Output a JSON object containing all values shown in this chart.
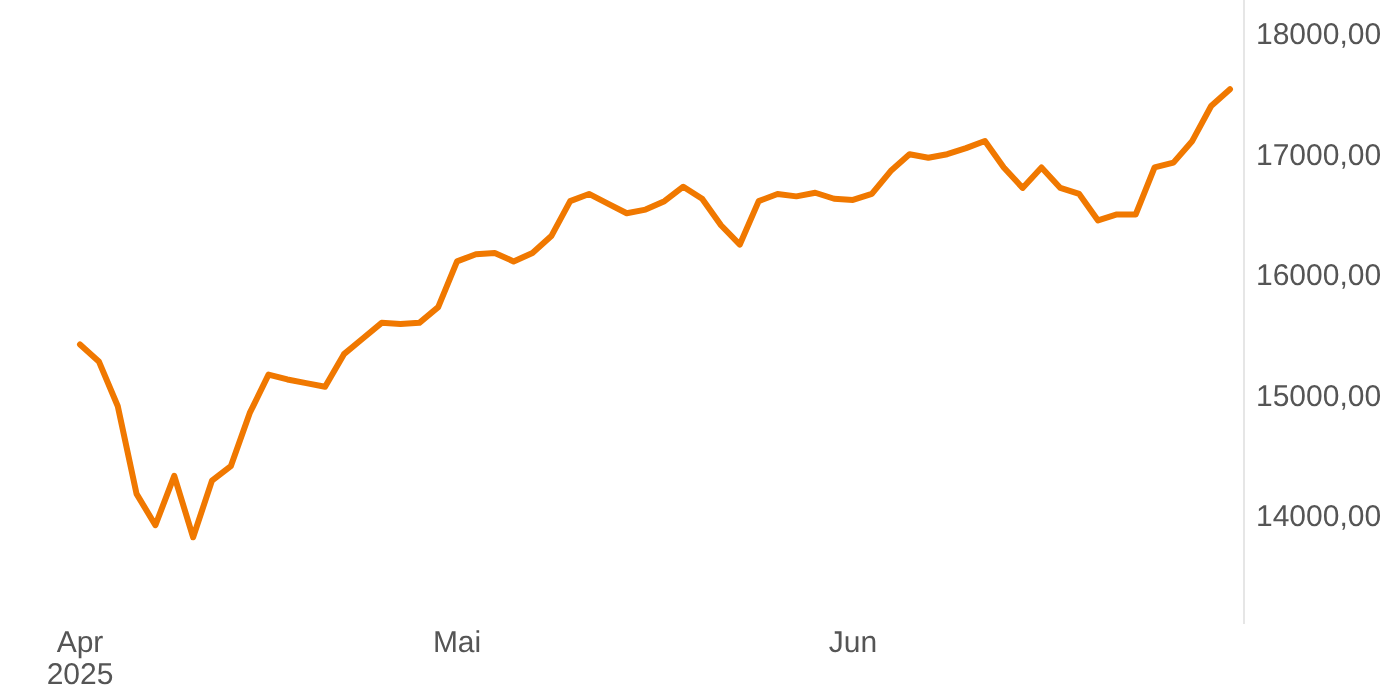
{
  "chart_data": {
    "type": "line",
    "categories": [
      "Apr\n2025",
      null,
      null,
      null,
      null,
      null,
      null,
      null,
      null,
      null,
      null,
      null,
      null,
      null,
      null,
      null,
      null,
      null,
      null,
      null,
      "Mai",
      null,
      null,
      null,
      null,
      null,
      null,
      null,
      null,
      null,
      null,
      null,
      null,
      null,
      null,
      null,
      null,
      null,
      null,
      null,
      null,
      "Jun",
      null,
      null,
      null,
      null,
      null,
      null,
      null,
      null,
      null,
      null,
      null,
      null,
      null,
      null,
      null,
      null,
      null,
      null,
      null,
      null
    ],
    "series": [
      {
        "color": "#f07800",
        "values": [
          15420,
          15280,
          14910,
          14180,
          13920,
          14330,
          13820,
          14290,
          14410,
          14850,
          15170,
          15130,
          15100,
          15070,
          15340,
          15470,
          15600,
          15590,
          15600,
          15730,
          16110,
          16170,
          16180,
          16110,
          16180,
          16320,
          16610,
          16670,
          16590,
          16510,
          16540,
          16610,
          16730,
          16630,
          16410,
          16250,
          16610,
          16670,
          16650,
          16680,
          16630,
          16620,
          16670,
          16860,
          17000,
          16970,
          17000,
          17050,
          17110,
          16890,
          16720,
          16890,
          16720,
          16670,
          16450,
          16500,
          16500,
          16890,
          16930,
          17110,
          17400,
          17540
        ]
      }
    ],
    "ylim": [
      13100,
      18280
    ],
    "yticks": [
      {
        "value": 14000,
        "label": "14000,00"
      },
      {
        "value": 15000,
        "label": "15000,00"
      },
      {
        "value": 16000,
        "label": "16000,00"
      },
      {
        "value": 17000,
        "label": "17000,00"
      },
      {
        "value": 18000,
        "label": "18000,00"
      }
    ],
    "grid": false,
    "marker": "none",
    "line_style": "solid"
  }
}
